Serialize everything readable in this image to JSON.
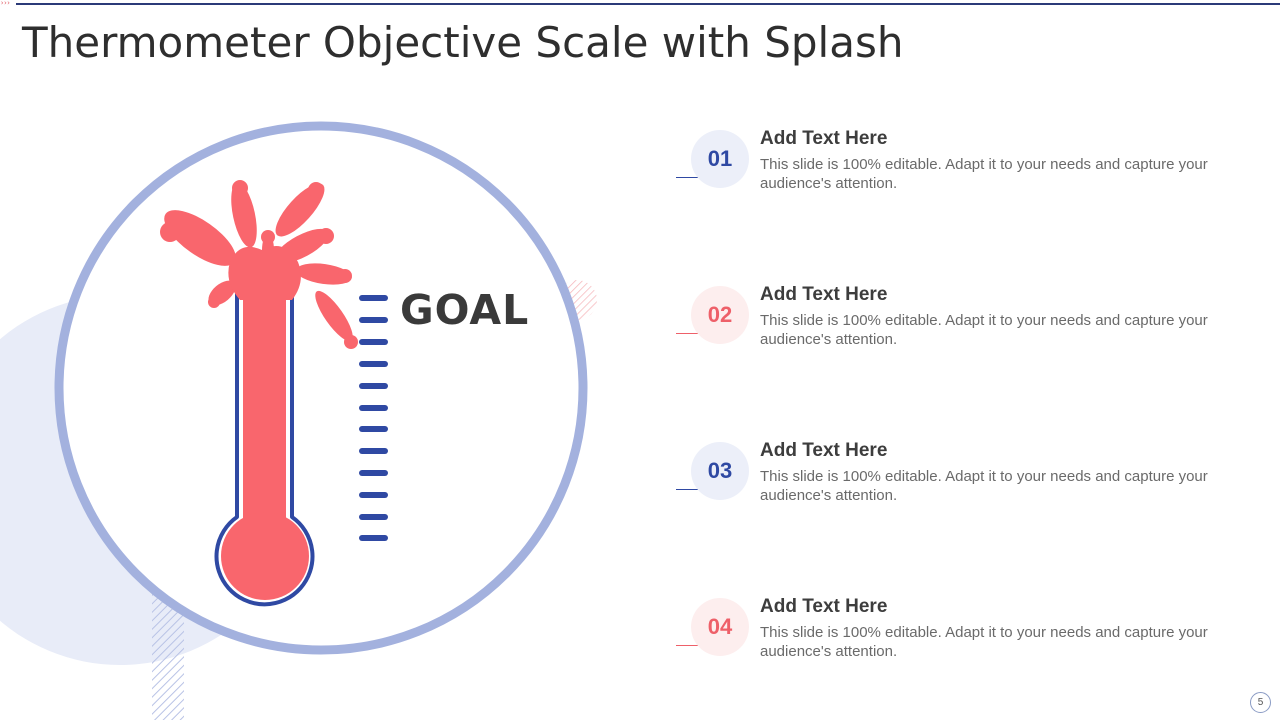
{
  "slide": {
    "title": "Thermometer Objective Scale with Splash",
    "page_number": "5",
    "goal_label": "GOAL"
  },
  "items": [
    {
      "num": "01",
      "heading": "Add Text Here",
      "body": "This slide is 100% editable. Adapt it to your needs and capture your audience's attention.",
      "accent": "blue"
    },
    {
      "num": "02",
      "heading": "Add Text Here",
      "body": "This slide is 100% editable. Adapt it to your needs and capture your audience's attention.",
      "accent": "red"
    },
    {
      "num": "03",
      "heading": "Add Text Here",
      "body": "This slide is 100% editable. Adapt it to your needs and capture your audience's attention.",
      "accent": "blue"
    },
    {
      "num": "04",
      "heading": "Add Text Here",
      "body": "This slide is 100% editable. Adapt it to your needs and capture your audience's attention.",
      "accent": "red"
    }
  ],
  "colors": {
    "blue": "#2f49a3",
    "red": "#f9666d",
    "ring": "#a3b1de",
    "light_blue": "#e8ecf8"
  }
}
